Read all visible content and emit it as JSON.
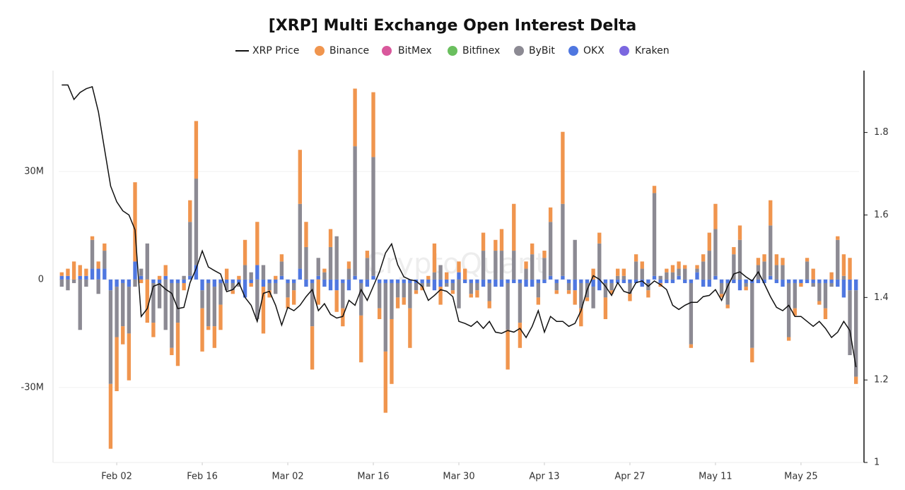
{
  "chart_data": {
    "type": "bar",
    "stacked": true,
    "title": "[XRP] Multi Exchange Open Interest Delta",
    "watermark": "CryptoQuant",
    "grid": true,
    "categories": [
      null,
      null,
      null,
      null,
      null,
      null,
      null,
      null,
      null,
      "Feb 02",
      null,
      null,
      null,
      null,
      null,
      null,
      null,
      null,
      null,
      null,
      null,
      null,
      null,
      "Feb 16",
      null,
      null,
      null,
      null,
      null,
      null,
      null,
      null,
      null,
      null,
      null,
      null,
      null,
      "Mar 02",
      null,
      null,
      null,
      null,
      null,
      null,
      null,
      null,
      null,
      null,
      null,
      null,
      null,
      "Mar 16",
      null,
      null,
      null,
      null,
      null,
      null,
      null,
      null,
      null,
      null,
      null,
      null,
      null,
      "Mar 30",
      null,
      null,
      null,
      null,
      null,
      null,
      null,
      null,
      null,
      null,
      null,
      null,
      null,
      "Apr 13",
      null,
      null,
      null,
      null,
      null,
      null,
      null,
      null,
      null,
      null,
      null,
      null,
      null,
      "Apr 27",
      null,
      null,
      null,
      null,
      null,
      null,
      null,
      null,
      null,
      null,
      null,
      null,
      null,
      "May 11",
      null,
      null,
      null,
      null,
      null,
      null,
      null,
      null,
      null,
      null,
      null,
      null,
      null,
      "May 25",
      null,
      null,
      null,
      null,
      null,
      null,
      null,
      null,
      null
    ],
    "ylim": [
      -50.8,
      58
    ],
    "yticks": [
      {
        "value": -30,
        "label": "-30M"
      },
      0,
      {
        "value": 30,
        "label": "30M"
      }
    ],
    "y2lim": [
      1,
      1.95
    ],
    "y2ticks": [
      1,
      1.2,
      1.4,
      1.6,
      1.8
    ],
    "series": [
      {
        "name": "XRP Price",
        "type": "line",
        "axis": "y2",
        "color": "#111111",
        "values": [
          1.915,
          1.915,
          1.88,
          1.897,
          1.906,
          1.911,
          1.85,
          1.76,
          1.67,
          1.632,
          1.61,
          1.6,
          1.564,
          1.354,
          1.373,
          1.427,
          1.433,
          1.42,
          1.41,
          1.373,
          1.376,
          1.436,
          1.47,
          1.513,
          1.474,
          1.465,
          1.457,
          1.414,
          1.419,
          1.436,
          1.4,
          1.381,
          1.342,
          1.41,
          1.415,
          1.381,
          1.333,
          1.376,
          1.368,
          1.381,
          1.402,
          1.419,
          1.368,
          1.385,
          1.359,
          1.35,
          1.354,
          1.393,
          1.381,
          1.419,
          1.393,
          1.427,
          1.462,
          1.508,
          1.53,
          1.479,
          1.45,
          1.443,
          1.44,
          1.427,
          1.393,
          1.405,
          1.419,
          1.415,
          1.402,
          1.342,
          1.337,
          1.33,
          1.342,
          1.325,
          1.342,
          1.316,
          1.313,
          1.32,
          1.316,
          1.325,
          1.303,
          1.33,
          1.368,
          1.316,
          1.354,
          1.342,
          1.342,
          1.33,
          1.337,
          1.368,
          1.419,
          1.453,
          1.444,
          1.427,
          1.405,
          1.436,
          1.415,
          1.41,
          1.436,
          1.44,
          1.427,
          1.44,
          1.431,
          1.419,
          1.381,
          1.371,
          1.381,
          1.388,
          1.388,
          1.402,
          1.405,
          1.419,
          1.393,
          1.427,
          1.457,
          1.462,
          1.45,
          1.44,
          1.462,
          1.433,
          1.402,
          1.376,
          1.368,
          1.381,
          1.354,
          1.354,
          1.342,
          1.33,
          1.342,
          1.325,
          1.303,
          1.316,
          1.342,
          1.32,
          1.231
        ]
      },
      {
        "name": "Binance",
        "color": "#f0954e",
        "values": [
          1,
          2,
          5,
          3,
          2,
          1,
          2,
          2,
          -18,
          -15,
          -5,
          -13,
          22,
          -1,
          -12,
          -4,
          1,
          3,
          -2,
          -12,
          -2,
          6,
          16,
          -12,
          -1,
          -6,
          -7,
          3,
          -1,
          1,
          7,
          -1,
          12,
          -13,
          -2,
          1,
          2,
          -3,
          -4,
          15,
          7,
          -12,
          -7,
          1,
          5,
          -6,
          -5,
          2,
          16,
          -13,
          2,
          18,
          -3,
          -17,
          -18,
          -3,
          -2,
          -11,
          -1,
          -1,
          1,
          8,
          -5,
          2,
          -1,
          3,
          3,
          -1,
          -2,
          5,
          -2,
          3,
          6,
          -11,
          13,
          -7,
          2,
          3,
          -2,
          2,
          4,
          -1,
          20,
          -1,
          -4,
          -5,
          -1,
          3,
          3,
          -6,
          -1,
          2,
          2,
          -2,
          2,
          2,
          -2,
          2,
          -1,
          1,
          2,
          2,
          1,
          -1,
          1,
          2,
          5,
          7,
          -1,
          -1,
          2,
          4,
          -1,
          -4,
          2,
          2,
          7,
          3,
          2,
          -1,
          -2,
          -1,
          1,
          3,
          -1,
          -3,
          2,
          1,
          6,
          6,
          -2
        ]
      },
      {
        "name": "BitMex",
        "color": "#d9589c",
        "values": [
          0,
          0,
          0,
          0,
          0,
          0,
          0,
          0,
          0,
          0,
          0,
          0,
          0,
          0,
          0,
          0,
          0,
          0,
          0,
          0,
          0,
          0,
          0,
          0,
          0,
          0,
          0,
          0,
          0,
          0,
          0,
          0,
          0,
          0,
          0,
          0,
          0,
          0,
          0,
          0,
          0,
          0,
          0,
          0,
          0,
          0,
          0,
          0,
          0,
          0,
          0,
          0,
          0,
          0,
          0,
          0,
          0,
          0,
          0,
          0,
          0,
          0,
          0,
          0,
          0,
          0,
          0,
          0,
          0,
          0,
          0,
          0,
          0,
          0,
          0,
          0,
          0,
          0,
          0,
          0,
          0,
          0,
          0,
          0,
          0,
          0,
          0,
          0,
          0,
          0,
          0,
          0,
          0,
          0,
          0,
          0,
          0,
          0,
          0,
          0,
          0,
          0,
          0,
          0,
          0,
          0,
          0,
          0,
          0,
          0,
          0,
          0,
          0,
          0,
          0,
          0,
          0,
          0,
          0,
          0,
          0,
          0,
          0,
          0,
          0,
          0,
          0,
          0,
          0,
          0,
          0
        ]
      },
      {
        "name": "Bitfinex",
        "color": "#6abf5e",
        "values": [
          0,
          0,
          0,
          0,
          0,
          0,
          0,
          0,
          0,
          0,
          0,
          0,
          0,
          0,
          0,
          0,
          0,
          0,
          0,
          0,
          0,
          0,
          0,
          0,
          0,
          0,
          0,
          0,
          0,
          0,
          0,
          0,
          0,
          0,
          0,
          0,
          0,
          0,
          0,
          0,
          0,
          0,
          0,
          0,
          0,
          0,
          0,
          0,
          0,
          0,
          0,
          0,
          0,
          0,
          0,
          0,
          0,
          0,
          0,
          0,
          0,
          0,
          0,
          0,
          0,
          0,
          0,
          0,
          0,
          0,
          0,
          0,
          0,
          0,
          0,
          0,
          0,
          0,
          0,
          0,
          0,
          0,
          0,
          0,
          0,
          0,
          0,
          0,
          0,
          0,
          0,
          0,
          0,
          0,
          0,
          0,
          0,
          0,
          0,
          0,
          0,
          0,
          0,
          0,
          0,
          0,
          0,
          0,
          0,
          0,
          0,
          0,
          0,
          0,
          0,
          0,
          0,
          0,
          0,
          0,
          0,
          0,
          0,
          0,
          0,
          0,
          0,
          0,
          0,
          0,
          0
        ]
      },
      {
        "name": "ByBit",
        "color": "#8c8a93",
        "values": [
          -2,
          -3,
          -1,
          -14,
          -2,
          8,
          -4,
          5,
          -26,
          -14,
          -12,
          -13,
          -2,
          2,
          10,
          -11,
          -7,
          -14,
          -18,
          -11,
          1,
          15,
          24,
          -5,
          -12,
          -11,
          -6,
          -2,
          -2,
          -1,
          4,
          2,
          -11,
          4,
          -2,
          -3,
          4,
          -4,
          -2,
          18,
          9,
          -12,
          5,
          2,
          9,
          12,
          -7,
          3,
          36,
          -9,
          6,
          33,
          -7,
          -19,
          -10,
          -4,
          -4,
          -7,
          -2,
          -1,
          -1,
          2,
          4,
          -1,
          -2,
          -8,
          0,
          -3,
          -2,
          8,
          -5,
          8,
          8,
          -13,
          8,
          -11,
          3,
          7,
          -4,
          6,
          15,
          -2,
          20,
          -2,
          11,
          -7,
          -4,
          -6,
          10,
          -4,
          -2,
          1,
          1,
          -3,
          5,
          3,
          -2,
          23,
          1,
          2,
          2,
          2,
          3,
          -17,
          1,
          5,
          8,
          13,
          -3,
          -6,
          7,
          11,
          -1,
          -18,
          4,
          5,
          14,
          4,
          4,
          -15,
          -7,
          0,
          5,
          -1,
          -5,
          -7,
          -1,
          11,
          1,
          -18,
          -24
        ]
      },
      {
        "name": "OKX",
        "color": "#4f77e0",
        "values": [
          1,
          1,
          0,
          1,
          1,
          3,
          3,
          3,
          -3,
          -2,
          -1,
          -2,
          5,
          1,
          0,
          -1,
          -1,
          1,
          -1,
          -1,
          -1,
          1,
          4,
          -3,
          -1,
          -2,
          -1,
          -1,
          -1,
          -1,
          -5,
          -1,
          4,
          -2,
          -1,
          -1,
          1,
          -1,
          -1,
          3,
          -2,
          -1,
          1,
          -2,
          -3,
          -3,
          -1,
          -3,
          1,
          -1,
          -2,
          1,
          -1,
          -1,
          -1,
          -1,
          -1,
          -1,
          -1,
          -1,
          -1,
          -3,
          -2,
          -1,
          -1,
          2,
          -1,
          -1,
          -1,
          -2,
          -1,
          -2,
          -2,
          -1,
          -1,
          -1,
          -2,
          -2,
          -1,
          -1,
          1,
          -1,
          1,
          -1,
          -3,
          -1,
          -1,
          -2,
          -3,
          -1,
          -1,
          -1,
          -1,
          -1,
          -1,
          -2,
          -1,
          1,
          -1,
          -1,
          -1,
          1,
          -1,
          -1,
          2,
          -2,
          -2,
          1,
          -1,
          -1,
          -1,
          -3,
          -1,
          -1,
          -1,
          -1,
          1,
          -1,
          -2,
          -1,
          -1,
          -1,
          -1,
          -1,
          -1,
          -1,
          -1,
          -2,
          -5,
          -3,
          -3
        ]
      },
      {
        "name": "Kraken",
        "color": "#7b67e0",
        "values": [
          0,
          0,
          0,
          0,
          0,
          0,
          0,
          0,
          0,
          0,
          0,
          0,
          0,
          0,
          0,
          0,
          0,
          0,
          0,
          0,
          0,
          0,
          0,
          0,
          0,
          0,
          0,
          0,
          0,
          0,
          0,
          0,
          0,
          0,
          0,
          0,
          0,
          0,
          0,
          0,
          0,
          0,
          0,
          0,
          0,
          0,
          0,
          0,
          0,
          0,
          0,
          0,
          0,
          0,
          0,
          0,
          0,
          0,
          0,
          0,
          0,
          0,
          0,
          0,
          0,
          0,
          0,
          0,
          0,
          0,
          0,
          0,
          0,
          0,
          0,
          0,
          0,
          0,
          0,
          0,
          0,
          0,
          0,
          0,
          0,
          0,
          0,
          0,
          0,
          0,
          0,
          0,
          0,
          0,
          0,
          0,
          0,
          0,
          0,
          0,
          0,
          0,
          0,
          0,
          0,
          0,
          0,
          0,
          0,
          0,
          0,
          0,
          0,
          0,
          0,
          0,
          0,
          0,
          0,
          0,
          0,
          0,
          0,
          0,
          0,
          0,
          0,
          0,
          0,
          0,
          0
        ]
      }
    ]
  }
}
